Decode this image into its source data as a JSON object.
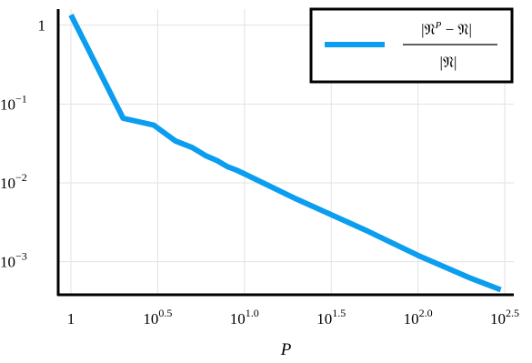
{
  "chart_data": {
    "type": "line",
    "title": "",
    "xlabel": "P",
    "ylabel": "",
    "xscale": "log",
    "yscale": "log",
    "grid": true,
    "xlim": [
      1,
      300
    ],
    "ylim": [
      0.00038,
      1.6
    ],
    "x_ticks": [
      {
        "value": 1,
        "base": "1",
        "exp": ""
      },
      {
        "value": 3.1623,
        "base": "10",
        "exp": "0.5"
      },
      {
        "value": 10,
        "base": "10",
        "exp": "1.0"
      },
      {
        "value": 31.623,
        "base": "10",
        "exp": "1.5"
      },
      {
        "value": 100,
        "base": "10",
        "exp": "2.0"
      },
      {
        "value": 316.23,
        "base": "10",
        "exp": "2.5"
      }
    ],
    "y_ticks": [
      {
        "value": 1,
        "base": "1",
        "exp": ""
      },
      {
        "value": 0.1,
        "base": "10",
        "exp": "−1"
      },
      {
        "value": 0.01,
        "base": "10",
        "exp": "−2"
      },
      {
        "value": 0.001,
        "base": "10",
        "exp": "−3"
      }
    ],
    "legend_position": "top-right",
    "series": [
      {
        "color": "#0a9df0",
        "legend": {
          "numerator_left": "|𝔑",
          "numerator_sup": "P",
          "numerator_right": " − 𝔑|",
          "denominator": "|𝔑|"
        },
        "x": [
          1,
          2,
          3,
          4,
          5,
          6,
          7,
          8,
          9,
          10,
          20,
          50,
          100,
          200,
          300
        ],
        "y": [
          1.35,
          0.066,
          0.054,
          0.034,
          0.028,
          0.022,
          0.019,
          0.016,
          0.0145,
          0.013,
          0.0062,
          0.0025,
          0.0012,
          0.00062,
          0.00044
        ]
      }
    ]
  }
}
